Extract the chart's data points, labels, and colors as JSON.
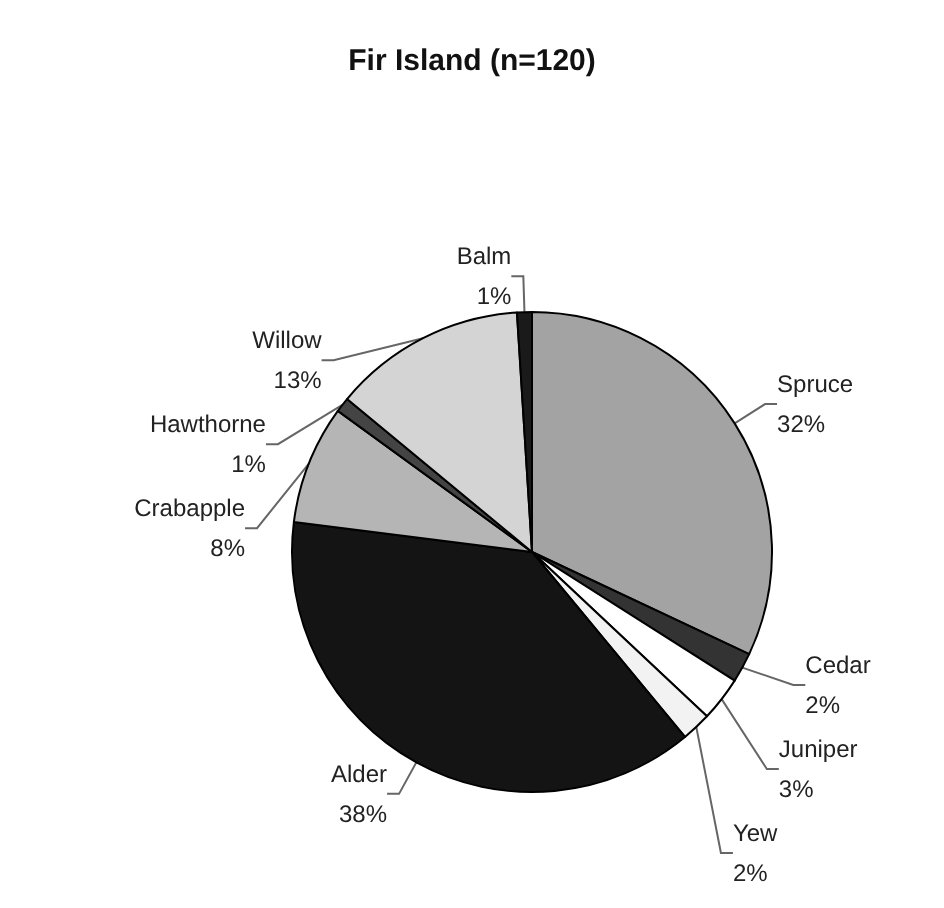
{
  "chart_data": {
    "type": "pie",
    "title": "Fir Island (n=120)",
    "categories": [
      "Spruce",
      "Cedar",
      "Juniper",
      "Yew",
      "Alder",
      "Crabapple",
      "Hawthorne",
      "Willow",
      "Balm"
    ],
    "values": [
      32,
      2,
      3,
      2,
      38,
      8,
      1,
      13,
      1
    ],
    "colors": [
      "#a3a3a3",
      "#333333",
      "#ffffff",
      "#f2f2f2",
      "#141414",
      "#b5b5b5",
      "#444444",
      "#d4d4d4",
      "#1a1a1a"
    ],
    "value_labels": [
      "32%",
      "2%",
      "3%",
      "2%",
      "38%",
      "8%",
      "1%",
      "13%",
      "1%"
    ],
    "legend": false
  }
}
